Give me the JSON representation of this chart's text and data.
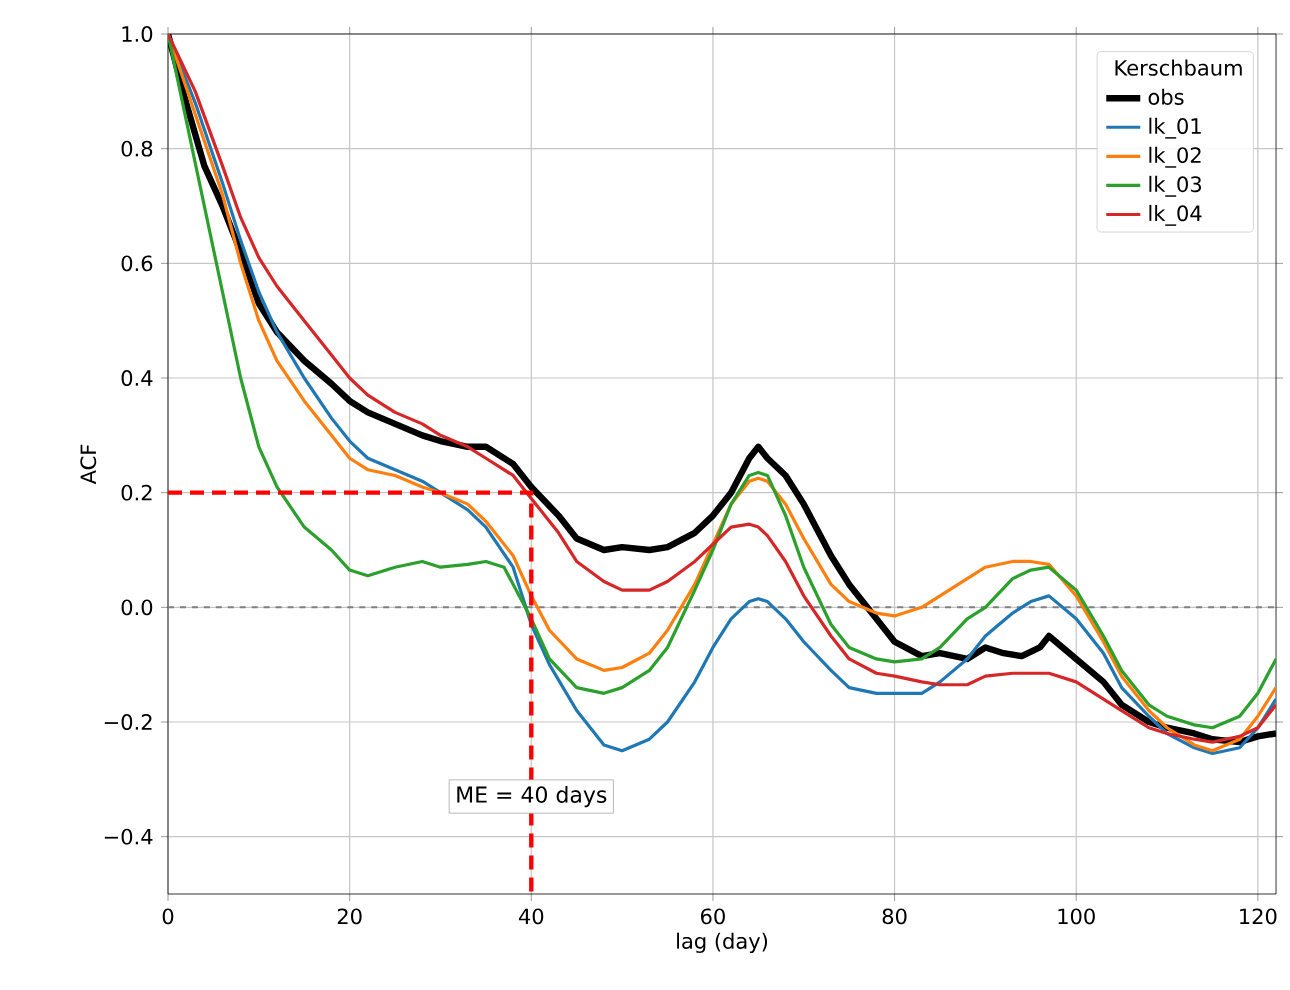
{
  "chart_data": {
    "type": "line",
    "xlabel": "lag (day)",
    "ylabel": "ACF",
    "legend_title": "Kerschbaum",
    "legend": "top right",
    "grid": true,
    "xlim": [
      0,
      122
    ],
    "ylim": [
      -0.5,
      1.0
    ],
    "xticks": [
      0,
      20,
      40,
      60,
      80,
      100,
      120
    ],
    "yticks": [
      {
        "value": -0.4,
        "label": "−0.4"
      },
      {
        "value": -0.2,
        "label": "−0.2"
      },
      {
        "value": 0.0,
        "label": "0.0"
      },
      0.2,
      0.4,
      0.6,
      0.8,
      {
        "value": 1.0,
        "label": "1.0"
      }
    ],
    "series": [
      {
        "name": "obs",
        "color": "#000000",
        "x": [
          0,
          2,
          4,
          6,
          8,
          10,
          12,
          15,
          18,
          20,
          22,
          25,
          28,
          30,
          33,
          35,
          38,
          40,
          43,
          45,
          48,
          50,
          53,
          55,
          58,
          60,
          62,
          64,
          65,
          66,
          68,
          70,
          73,
          75,
          78,
          80,
          83,
          85,
          88,
          90,
          92,
          94,
          96,
          97,
          100,
          103,
          105,
          108,
          110,
          113,
          115,
          118,
          120,
          122
        ],
        "values": [
          1.0,
          0.88,
          0.77,
          0.7,
          0.62,
          0.53,
          0.48,
          0.43,
          0.39,
          0.36,
          0.34,
          0.32,
          0.3,
          0.29,
          0.28,
          0.28,
          0.25,
          0.21,
          0.16,
          0.12,
          0.1,
          0.105,
          0.1,
          0.105,
          0.13,
          0.16,
          0.2,
          0.26,
          0.28,
          0.26,
          0.23,
          0.18,
          0.09,
          0.04,
          -0.02,
          -0.06,
          -0.085,
          -0.08,
          -0.09,
          -0.07,
          -0.08,
          -0.085,
          -0.07,
          -0.05,
          -0.09,
          -0.13,
          -0.17,
          -0.2,
          -0.21,
          -0.22,
          -0.23,
          -0.235,
          -0.225,
          -0.22
        ]
      },
      {
        "name": "lk_01",
        "color": "#1f77b4",
        "x": [
          0,
          3,
          6,
          8,
          10,
          12,
          15,
          18,
          20,
          22,
          25,
          28,
          30,
          33,
          35,
          38,
          40,
          42,
          45,
          48,
          50,
          53,
          55,
          58,
          60,
          62,
          64,
          65,
          66,
          68,
          70,
          73,
          75,
          78,
          80,
          83,
          85,
          88,
          90,
          93,
          95,
          97,
          100,
          103,
          105,
          108,
          110,
          113,
          115,
          118,
          120,
          122
        ],
        "values": [
          1.0,
          0.88,
          0.74,
          0.64,
          0.55,
          0.48,
          0.4,
          0.33,
          0.29,
          0.26,
          0.24,
          0.22,
          0.2,
          0.17,
          0.14,
          0.07,
          -0.03,
          -0.1,
          -0.18,
          -0.24,
          -0.25,
          -0.23,
          -0.2,
          -0.13,
          -0.07,
          -0.02,
          0.01,
          0.015,
          0.01,
          -0.02,
          -0.06,
          -0.11,
          -0.14,
          -0.15,
          -0.15,
          -0.15,
          -0.13,
          -0.09,
          -0.05,
          -0.01,
          0.01,
          0.02,
          -0.02,
          -0.08,
          -0.14,
          -0.19,
          -0.22,
          -0.245,
          -0.255,
          -0.245,
          -0.21,
          -0.16
        ]
      },
      {
        "name": "lk_02",
        "color": "#ff7f0e",
        "x": [
          0,
          3,
          6,
          8,
          10,
          12,
          15,
          18,
          20,
          22,
          25,
          28,
          30,
          33,
          35,
          38,
          40,
          42,
          45,
          48,
          50,
          53,
          55,
          58,
          60,
          62,
          64,
          65,
          66,
          68,
          70,
          73,
          75,
          78,
          80,
          83,
          85,
          88,
          90,
          93,
          95,
          97,
          100,
          103,
          105,
          108,
          110,
          113,
          115,
          118,
          120,
          122
        ],
        "values": [
          1.0,
          0.86,
          0.72,
          0.6,
          0.5,
          0.43,
          0.36,
          0.3,
          0.26,
          0.24,
          0.23,
          0.21,
          0.2,
          0.18,
          0.15,
          0.09,
          0.02,
          -0.04,
          -0.09,
          -0.11,
          -0.105,
          -0.08,
          -0.04,
          0.04,
          0.11,
          0.18,
          0.22,
          0.225,
          0.22,
          0.18,
          0.12,
          0.04,
          0.01,
          -0.01,
          -0.015,
          0.0,
          0.02,
          0.05,
          0.07,
          0.08,
          0.08,
          0.075,
          0.02,
          -0.06,
          -0.12,
          -0.18,
          -0.21,
          -0.24,
          -0.25,
          -0.23,
          -0.19,
          -0.14
        ]
      },
      {
        "name": "lk_03",
        "color": "#2ca02c",
        "x": [
          0,
          2,
          4,
          6,
          8,
          10,
          12,
          15,
          18,
          20,
          22,
          25,
          28,
          30,
          33,
          35,
          37,
          40,
          42,
          45,
          48,
          50,
          53,
          55,
          58,
          60,
          62,
          64,
          65,
          66,
          68,
          70,
          73,
          75,
          78,
          80,
          83,
          85,
          88,
          90,
          93,
          95,
          97,
          100,
          103,
          105,
          108,
          110,
          113,
          115,
          118,
          120,
          122
        ],
        "values": [
          1.0,
          0.85,
          0.7,
          0.55,
          0.4,
          0.28,
          0.21,
          0.14,
          0.1,
          0.065,
          0.055,
          0.07,
          0.08,
          0.07,
          0.075,
          0.08,
          0.07,
          -0.02,
          -0.09,
          -0.14,
          -0.15,
          -0.14,
          -0.11,
          -0.07,
          0.03,
          0.1,
          0.18,
          0.23,
          0.235,
          0.23,
          0.16,
          0.07,
          -0.03,
          -0.07,
          -0.09,
          -0.095,
          -0.09,
          -0.07,
          -0.02,
          0.0,
          0.05,
          0.065,
          0.07,
          0.03,
          -0.05,
          -0.11,
          -0.17,
          -0.19,
          -0.205,
          -0.21,
          -0.19,
          -0.15,
          -0.09
        ]
      },
      {
        "name": "lk_04",
        "color": "#d62728",
        "x": [
          0,
          3,
          6,
          8,
          10,
          12,
          15,
          18,
          20,
          22,
          25,
          28,
          30,
          33,
          35,
          38,
          40,
          43,
          45,
          48,
          50,
          53,
          55,
          58,
          60,
          62,
          64,
          65,
          66,
          68,
          70,
          73,
          75,
          78,
          80,
          83,
          85,
          88,
          90,
          93,
          95,
          97,
          100,
          103,
          105,
          108,
          110,
          113,
          115,
          118,
          120,
          122
        ],
        "values": [
          1.0,
          0.9,
          0.77,
          0.68,
          0.61,
          0.56,
          0.5,
          0.44,
          0.4,
          0.37,
          0.34,
          0.32,
          0.3,
          0.28,
          0.26,
          0.23,
          0.19,
          0.13,
          0.08,
          0.045,
          0.03,
          0.03,
          0.045,
          0.08,
          0.11,
          0.14,
          0.145,
          0.14,
          0.125,
          0.08,
          0.02,
          -0.05,
          -0.09,
          -0.115,
          -0.12,
          -0.13,
          -0.135,
          -0.135,
          -0.12,
          -0.115,
          -0.115,
          -0.115,
          -0.13,
          -0.16,
          -0.18,
          -0.21,
          -0.22,
          -0.23,
          -0.235,
          -0.225,
          -0.21,
          -0.17
        ]
      },
      {
        "color": "#ff0000",
        "line_style": "dashed",
        "x": [
          0,
          40,
          40
        ],
        "values": [
          0.2,
          0.2,
          -0.5
        ]
      }
    ],
    "ref_lines": [
      {
        "axis": "y",
        "value": 0.0,
        "color": "#808080",
        "line_style": "dashed"
      }
    ],
    "annotations": [
      {
        "text": "ME = 40 days",
        "x": 40,
        "y": -0.33
      }
    ]
  }
}
